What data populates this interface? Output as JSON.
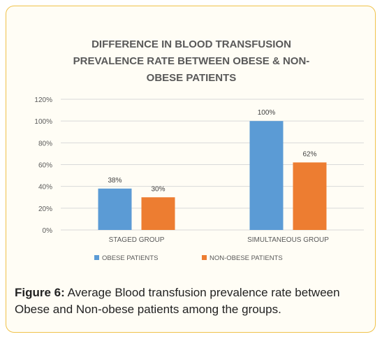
{
  "chart_data": {
    "type": "bar",
    "title_lines": [
      "DIFFERENCE IN BLOOD TRANSFUSION",
      "PREVALENCE RATE BETWEEN OBESE & NON-",
      "OBESE PATIENTS"
    ],
    "categories": [
      "STAGED GROUP",
      "SIMULTANEOUS GROUP"
    ],
    "series": [
      {
        "name": "OBESE PATIENTS",
        "values": [
          38,
          100
        ],
        "labels": [
          "38%",
          "100%"
        ],
        "color": "#5b9bd5"
      },
      {
        "name": "NON-OBESE PATIENTS",
        "values": [
          30,
          62
        ],
        "labels": [
          "30%",
          "62%"
        ],
        "color": "#ed7d31"
      }
    ],
    "y_ticks": [
      0,
      20,
      40,
      60,
      80,
      100,
      120
    ],
    "y_tick_labels": [
      "0%",
      "20%",
      "40%",
      "60%",
      "80%",
      "100%",
      "120%"
    ],
    "ylim": [
      0,
      120
    ],
    "grid": true,
    "legend_position": "bottom"
  },
  "caption": {
    "label": "Figure 6:",
    "text": " Average Blood transfusion prevalence rate between Obese and Non-obese patients among the groups."
  }
}
